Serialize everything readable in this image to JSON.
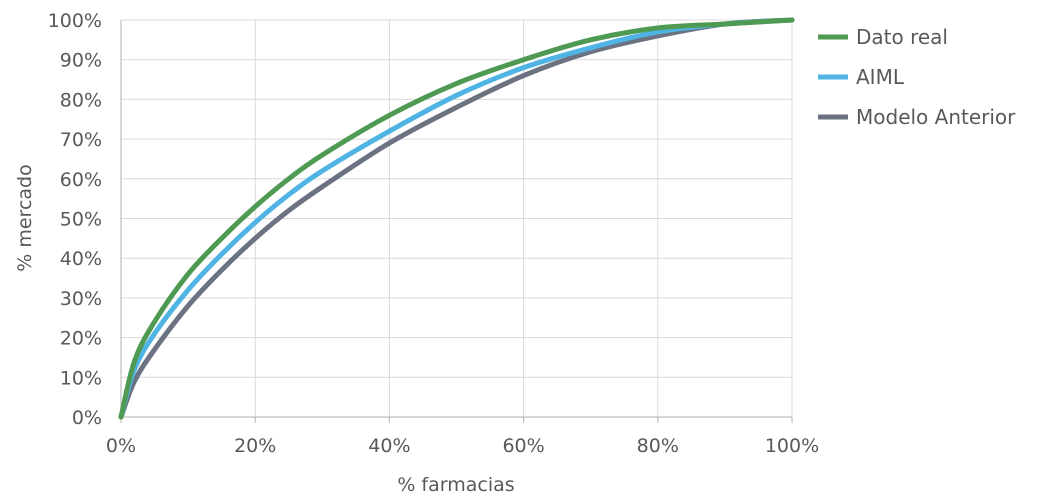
{
  "chart_data": {
    "type": "line",
    "title": "",
    "xlabel": "% farmacias",
    "ylabel": "% mercado",
    "xlim": [
      0,
      100
    ],
    "ylim": [
      0,
      100
    ],
    "x_ticks": [
      "0%",
      "20%",
      "40%",
      "60%",
      "80%",
      "100%"
    ],
    "y_ticks": [
      "0%",
      "10%",
      "20%",
      "30%",
      "40%",
      "50%",
      "60%",
      "70%",
      "80%",
      "90%",
      "100%"
    ],
    "grid": true,
    "legend_position": "right",
    "x": [
      0,
      2,
      5,
      10,
      15,
      20,
      25,
      30,
      40,
      50,
      60,
      70,
      80,
      90,
      100
    ],
    "series": [
      {
        "name": "Dato real",
        "color": "#4e9a53",
        "values": [
          0,
          14,
          24,
          36,
          45,
          53,
          60,
          66,
          76,
          84,
          90,
          95,
          98,
          99,
          100
        ]
      },
      {
        "name": "AIML",
        "color": "#4fb3e3",
        "values": [
          0,
          12,
          21,
          32,
          41,
          49,
          56,
          62,
          72,
          81,
          88,
          93,
          97,
          99,
          100
        ]
      },
      {
        "name": "Modelo Anterior",
        "color": "#6b7383",
        "values": [
          0,
          9,
          17,
          28,
          37,
          45,
          52,
          58,
          69,
          78,
          86,
          92,
          96,
          99,
          100
        ]
      }
    ]
  }
}
